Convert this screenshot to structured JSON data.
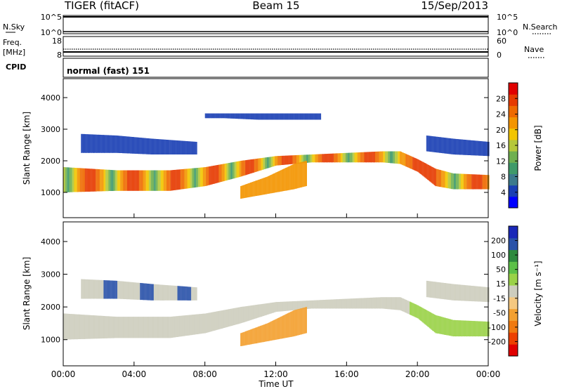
{
  "header": {
    "radar": "TIGER (fitACF)",
    "beam": "Beam 15",
    "date": "15/Sep/2013"
  },
  "strips": {
    "nsky": {
      "label": "N.Sky",
      "ticks": [
        "10^5",
        "10^0"
      ],
      "right_label": "N.Search",
      "right_ticks": [
        "10^5",
        "10^0"
      ]
    },
    "freq": {
      "label_line1": "Freq.",
      "label_line2": "[MHz]",
      "ticks": [
        "18",
        "8"
      ],
      "right_label": "Nave",
      "right_ticks": [
        "60",
        "0"
      ]
    },
    "cpid": {
      "label": "CPID",
      "value": "normal (fast) 151"
    }
  },
  "colors": {
    "power": [
      "#0000ff",
      "#1a3fb4",
      "#3c7a8c",
      "#3f9a6a",
      "#6fb050",
      "#b5c83a",
      "#f2c500",
      "#f39500",
      "#ee6a00",
      "#e63a00",
      "#e00000"
    ],
    "velocity": [
      "#e00000",
      "#ec4000",
      "#f07a10",
      "#f3a030",
      "#f5c880",
      "#cdcdbe",
      "#9ad248",
      "#5cc048",
      "#2e8a3e",
      "#2a52a8",
      "#1a28b8"
    ]
  },
  "chart_data": [
    {
      "type": "heatmap",
      "name": "power",
      "ylabel": "Slant Range [km]",
      "yticks": [
        "1000",
        "2000",
        "3000",
        "4000"
      ],
      "ylim": [
        200,
        4600
      ],
      "xlim": [
        0,
        24
      ],
      "colorbar": {
        "label": "Power [dB]",
        "ticks": [
          "4",
          "8",
          "12",
          "16",
          "20",
          "24",
          "28"
        ],
        "range": [
          0,
          30
        ]
      },
      "features": [
        {
          "t": [
            0,
            3,
            6,
            8,
            10,
            12,
            14,
            16,
            18,
            19,
            20,
            21,
            22,
            24
          ],
          "lo": [
            1000,
            1050,
            1050,
            1200,
            1500,
            1850,
            1950,
            1950,
            1950,
            1900,
            1650,
            1200,
            1100,
            1100
          ],
          "hi": [
            1800,
            1700,
            1700,
            1800,
            2000,
            2150,
            2200,
            2250,
            2300,
            2300,
            2050,
            1750,
            1600,
            1550
          ]
        },
        {
          "t": [
            10,
            11.5,
            13,
            13.7
          ],
          "lo": [
            800,
            950,
            1100,
            1200
          ],
          "hi": [
            1200,
            1500,
            1900,
            2000
          ]
        },
        {
          "t": [
            1,
            3,
            5,
            7.5
          ],
          "lo": [
            2250,
            2250,
            2200,
            2200
          ],
          "hi": [
            2850,
            2800,
            2700,
            2600
          ]
        },
        {
          "t": [
            8,
            9,
            11,
            14.5
          ],
          "lo": [
            3350,
            3350,
            3300,
            3300
          ],
          "hi": [
            3500,
            3500,
            3500,
            3500
          ]
        },
        {
          "t": [
            20.5,
            22,
            24
          ],
          "lo": [
            2300,
            2200,
            2150
          ],
          "hi": [
            2800,
            2700,
            2600
          ]
        }
      ]
    },
    {
      "type": "heatmap",
      "name": "velocity",
      "ylabel": "Slant Range [km]",
      "yticks": [
        "1000",
        "2000",
        "3000",
        "4000"
      ],
      "ylim": [
        200,
        4600
      ],
      "xlim": [
        0,
        24
      ],
      "xlabel": "Time UT",
      "xticks": [
        "00:00",
        "04:00",
        "08:00",
        "12:00",
        "16:00",
        "20:00",
        "00:00"
      ],
      "colorbar": {
        "label": "Velocity [m s⁻¹]",
        "ticks": [
          "-200",
          "-100",
          "-50",
          "-15",
          "15",
          "50",
          "100",
          "200"
        ]
      },
      "features": [
        {
          "t": [
            0,
            3,
            6,
            8,
            10,
            12,
            14,
            16,
            18,
            19,
            20,
            21,
            22,
            24
          ],
          "lo": [
            1000,
            1050,
            1050,
            1200,
            1500,
            1850,
            1950,
            1950,
            1950,
            1900,
            1650,
            1200,
            1100,
            1100
          ],
          "hi": [
            1800,
            1700,
            1700,
            1800,
            2000,
            2150,
            2200,
            2250,
            2300,
            2300,
            2050,
            1750,
            1600,
            1550
          ]
        },
        {
          "t": [
            10,
            11.5,
            13,
            13.7
          ],
          "lo": [
            800,
            950,
            1100,
            1200
          ],
          "hi": [
            1200,
            1500,
            1900,
            2000
          ]
        },
        {
          "t": [
            1,
            3,
            5,
            7.5
          ],
          "lo": [
            2250,
            2250,
            2200,
            2200
          ],
          "hi": [
            2850,
            2800,
            2700,
            2600
          ]
        },
        {
          "t": [
            20.5,
            22,
            24
          ],
          "lo": [
            2300,
            2200,
            2150
          ],
          "hi": [
            2800,
            2700,
            2600
          ]
        }
      ]
    }
  ]
}
